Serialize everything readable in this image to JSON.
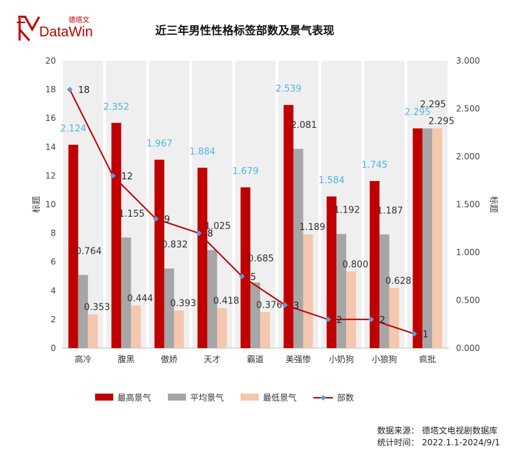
{
  "header": {
    "title": "近三年男性性格标签部数及景气表现",
    "brand_cn": "德塔文",
    "brand_en": "DataWin"
  },
  "footer": {
    "source_label": "数据来源：",
    "source_value": "德塔文电视剧数据库",
    "period_label": "统计时间：",
    "period_value": "2022.1.1-2024/9/1"
  },
  "chart_data": {
    "type": "bar",
    "categories": [
      "高冷",
      "腹黑",
      "傲娇",
      "天才",
      "霸道",
      "美强惨",
      "小奶狗",
      "小狼狗",
      "疯批"
    ],
    "series": [
      {
        "name": "最高景气",
        "kind": "bar",
        "axis": "right",
        "color": "#c00000",
        "values": [
          2.124,
          2.352,
          1.967,
          1.884,
          1.679,
          2.539,
          1.584,
          1.745,
          2.295
        ],
        "labels": [
          "2.124",
          "2.352",
          "1.967",
          "1.884",
          "1.679",
          "2.539",
          "1.584",
          "1.745",
          "2.295"
        ]
      },
      {
        "name": "平均景气",
        "kind": "bar",
        "axis": "right",
        "color": "#a6a6a6",
        "values": [
          0.764,
          1.155,
          0.832,
          1.025,
          0.685,
          2.081,
          1.192,
          1.187,
          2.295
        ],
        "labels": [
          "0.764",
          "1.155",
          "0.832",
          "1.025",
          "0.685",
          "2.081",
          "1.192",
          "1.187",
          "2.295"
        ]
      },
      {
        "name": "最低景气",
        "kind": "bar",
        "axis": "right",
        "color": "#f4c7ae",
        "values": [
          0.353,
          0.444,
          0.393,
          0.418,
          0.376,
          1.189,
          0.8,
          0.628,
          2.295
        ],
        "labels": [
          "0.353",
          "0.444",
          "0.393",
          "0.418",
          "0.376",
          "1.189",
          "0.800",
          "0.628",
          "2.295"
        ]
      },
      {
        "name": "部数",
        "kind": "line",
        "axis": "left",
        "color": "#c00000",
        "marker_color": "#5b9bd5",
        "values": [
          18,
          12,
          9,
          8,
          5,
          3,
          2,
          2,
          1
        ],
        "labels": [
          "18",
          "12",
          "9",
          "8",
          "5",
          "3",
          "2",
          "2",
          "1"
        ]
      }
    ],
    "y_left": {
      "label": "标题",
      "range": [
        0,
        20
      ],
      "ticks": [
        "0",
        "2",
        "4",
        "6",
        "8",
        "10",
        "12",
        "14",
        "16",
        "18",
        "20"
      ]
    },
    "y_right": {
      "label": "标题",
      "range": [
        0,
        3
      ],
      "ticks": [
        "0.000",
        "0.500",
        "1.000",
        "1.500",
        "2.000",
        "2.500",
        "3.000"
      ]
    },
    "grid": false,
    "legend": "bottom"
  }
}
